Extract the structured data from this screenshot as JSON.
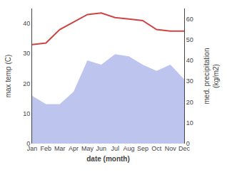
{
  "chart_data": {
    "type": "line",
    "categories": [
      "Jan",
      "Feb",
      "Mar",
      "Apr",
      "May",
      "Jun",
      "Jul",
      "Aug",
      "Sep",
      "Oct",
      "Nov",
      "Dec"
    ],
    "series": [
      {
        "type": "area",
        "axis": "y2",
        "color": "#bdc5ee",
        "values": [
          23,
          19,
          19,
          25,
          40,
          38,
          43,
          42,
          38,
          35,
          38,
          31
        ]
      },
      {
        "type": "line",
        "axis": "y",
        "color": "#cc4444",
        "values": [
          33,
          33.5,
          38,
          40.5,
          43,
          43.5,
          42,
          41.5,
          41,
          38,
          37.5,
          37.5
        ]
      }
    ],
    "xlabel": "date (month)",
    "ylabel": "max temp (C)",
    "y2label": "med. precipitation\n(kg/m2)",
    "ylim": [
      0,
      45
    ],
    "yticks": [
      0,
      10,
      20,
      30,
      40
    ],
    "y2lim": [
      0,
      65
    ],
    "y2ticks": [
      0,
      10,
      20,
      30,
      40,
      50,
      60
    ],
    "grid": false
  }
}
